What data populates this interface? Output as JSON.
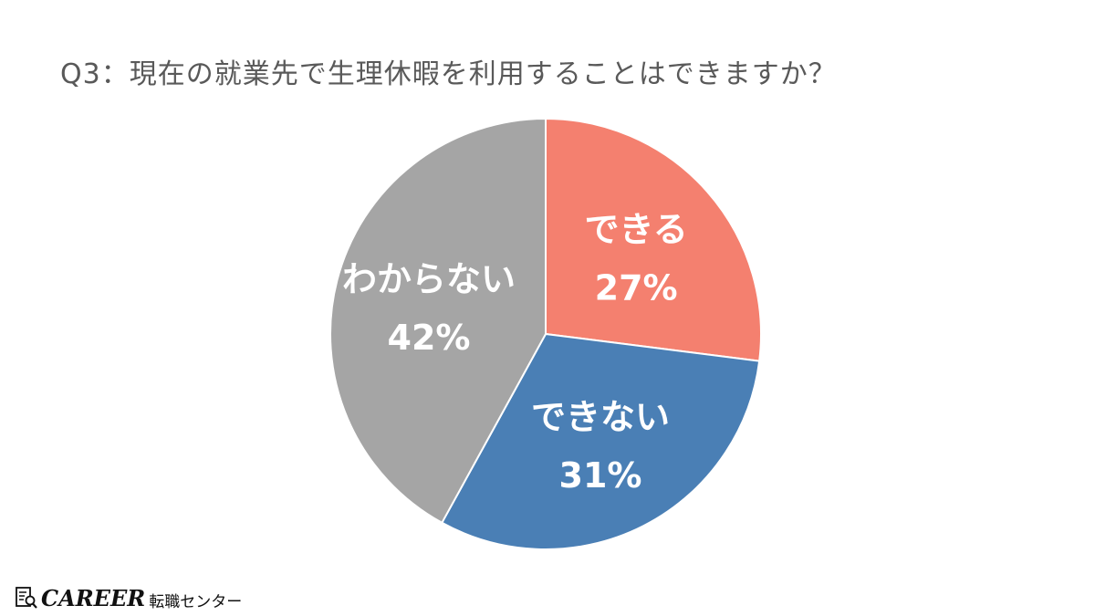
{
  "chart_data": {
    "type": "pie",
    "title": "Q3：現在の就業先で生理休暇を利用することはできますか？",
    "slices": [
      {
        "label": "できる",
        "value": 27,
        "display": "27%",
        "color": "#F4806F"
      },
      {
        "label": "できない",
        "value": 31,
        "display": "31%",
        "color": "#4A7FB5"
      },
      {
        "label": "わからない",
        "value": 42,
        "display": "42%",
        "color": "#A5A5A5"
      }
    ],
    "start": "12 o'clock",
    "direction": "clockwise",
    "legend": "none",
    "label_color": "#ffffff"
  },
  "brand": {
    "name": "CAREER",
    "sub": "転職センター"
  }
}
